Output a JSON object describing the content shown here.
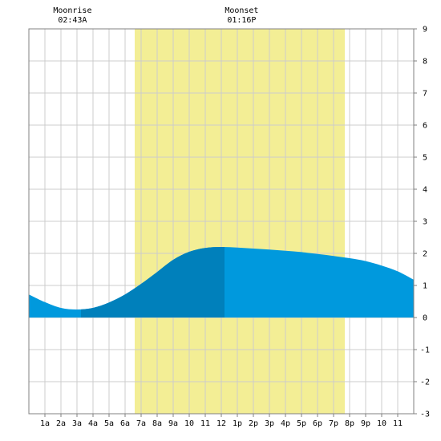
{
  "chart_data": {
    "type": "area",
    "title": "",
    "xlabel": "",
    "ylabel": "",
    "ylim": [
      -3,
      9
    ],
    "xlim": [
      0,
      24
    ],
    "grid": true,
    "y_ticks": [
      -3,
      -2,
      -1,
      0,
      1,
      2,
      3,
      4,
      5,
      6,
      7,
      8,
      9
    ],
    "x_tick_hours": [
      1,
      2,
      3,
      4,
      5,
      6,
      7,
      8,
      9,
      10,
      11,
      12,
      13,
      14,
      15,
      16,
      17,
      18,
      19,
      20,
      21,
      22,
      23
    ],
    "x_tick_labels": [
      "1a",
      "2a",
      "3a",
      "4a",
      "5a",
      "6a",
      "7a",
      "8a",
      "9a",
      "10",
      "11",
      "12",
      "1p",
      "2p",
      "3p",
      "4p",
      "5p",
      "6p",
      "7p",
      "8p",
      "9p",
      "10",
      "11"
    ],
    "daylight_band": {
      "start_hour": 6.6,
      "end_hour": 19.7
    },
    "moon_events": [
      {
        "name": "Moonrise",
        "time": "02:43A",
        "hour": 2.72
      },
      {
        "name": "Moonset",
        "time": "01:16P",
        "hour": 13.27
      }
    ],
    "highlight_span": {
      "start_hour": 3.25,
      "end_hour": 12.2
    },
    "series": [
      {
        "x": [
          0,
          1,
          2,
          3,
          4,
          5,
          6,
          7,
          8,
          9,
          10,
          11,
          12,
          13,
          14,
          15,
          16,
          17,
          18,
          19,
          20,
          21,
          22,
          23,
          24
        ],
        "values": [
          0.72,
          0.48,
          0.3,
          0.25,
          0.3,
          0.47,
          0.72,
          1.05,
          1.42,
          1.8,
          2.05,
          2.17,
          2.2,
          2.18,
          2.15,
          2.12,
          2.08,
          2.04,
          1.98,
          1.92,
          1.85,
          1.76,
          1.62,
          1.44,
          1.18
        ]
      }
    ],
    "colors": {
      "tide": "#0099dd",
      "tide_highlight": "#0080bb",
      "daylight": "#f3ee95",
      "grid": "#cccccc",
      "frame": "#808080"
    }
  }
}
